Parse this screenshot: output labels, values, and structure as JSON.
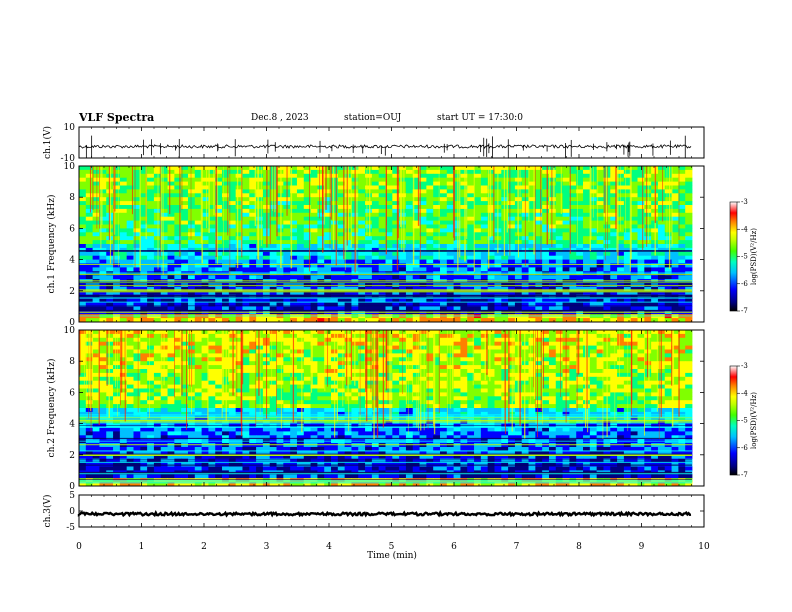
{
  "header": {
    "title": "VLF Spectra",
    "date": "Dec.8 , 2023",
    "station": "station=OUJ",
    "start": "start UT = 17:30:0"
  },
  "chart_data": [
    {
      "type": "line",
      "name": "ch1-waveform",
      "ylabel": "ch.1(V)",
      "ylim": [
        -10,
        10
      ],
      "yticks": [
        "10",
        "-10"
      ],
      "xlim": [
        0,
        10
      ]
    },
    {
      "type": "heatmap",
      "name": "ch1-spectrogram",
      "ylabel": "ch.1 Frequency (kHz)",
      "ylim": [
        0,
        10
      ],
      "yticks": [
        "0",
        "2",
        "4",
        "6",
        "8",
        "10"
      ],
      "xlim": [
        0,
        10
      ],
      "colorbar": {
        "label": "log(PSD)(V²/Hz)",
        "range": [
          -7,
          -3
        ],
        "ticks": [
          "-3",
          "-4",
          "-5",
          "-6",
          "-7"
        ]
      }
    },
    {
      "type": "heatmap",
      "name": "ch2-spectrogram",
      "ylabel": "ch.2 Frequency (kHz)",
      "ylim": [
        0,
        10
      ],
      "yticks": [
        "0",
        "2",
        "4",
        "6",
        "8",
        "10"
      ],
      "xlim": [
        0,
        10
      ],
      "colorbar": {
        "label": "log(PSD)(V²/Hz)",
        "range": [
          -7,
          -3
        ],
        "ticks": [
          "-3",
          "-4",
          "-5",
          "-6",
          "-7"
        ]
      }
    },
    {
      "type": "line",
      "name": "ch3-waveform",
      "ylabel": "ch.3(V)",
      "ylim": [
        -5,
        5
      ],
      "yticks": [
        "5",
        "0",
        "-5"
      ],
      "xlim": [
        0,
        10
      ],
      "xlabel": "Time (min)",
      "xticks": [
        "0",
        "1",
        "2",
        "3",
        "4",
        "5",
        "6",
        "7",
        "8",
        "9",
        "10"
      ]
    }
  ],
  "colors": {
    "ramp": [
      "#000080",
      "#0000ff",
      "#00c0ff",
      "#00ffff",
      "#00ff80",
      "#80ff00",
      "#ffff00",
      "#ff8000",
      "#ff0000",
      "#ffffff"
    ]
  }
}
